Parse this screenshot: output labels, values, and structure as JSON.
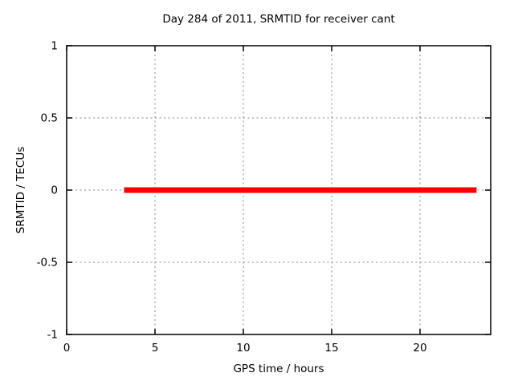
{
  "chart_data": {
    "type": "line",
    "title": "Day 284 of 2011, SRMTID for receiver cant",
    "xlabel": "GPS time / hours",
    "ylabel": "SRMTID / TECUs",
    "xlim": [
      0,
      24
    ],
    "ylim": [
      -1,
      1
    ],
    "xticks": [
      0,
      5,
      10,
      15,
      20
    ],
    "xtick_labels": [
      "0",
      "5",
      "10",
      "15",
      "20"
    ],
    "yticks": [
      -1,
      -0.5,
      0,
      0.5,
      1
    ],
    "ytick_labels": [
      "-1",
      "-0.5",
      "0",
      "0.5",
      "1"
    ],
    "grid": true,
    "legend": "none",
    "grid_color": "#878787",
    "axis_color": "#000000",
    "background_color": "#ffffff",
    "series": [
      {
        "name": "SRMTID",
        "color": "#ff0000",
        "line_width": 7,
        "points": [
          [
            3.25,
            0
          ],
          [
            23.2,
            0
          ]
        ]
      }
    ]
  }
}
